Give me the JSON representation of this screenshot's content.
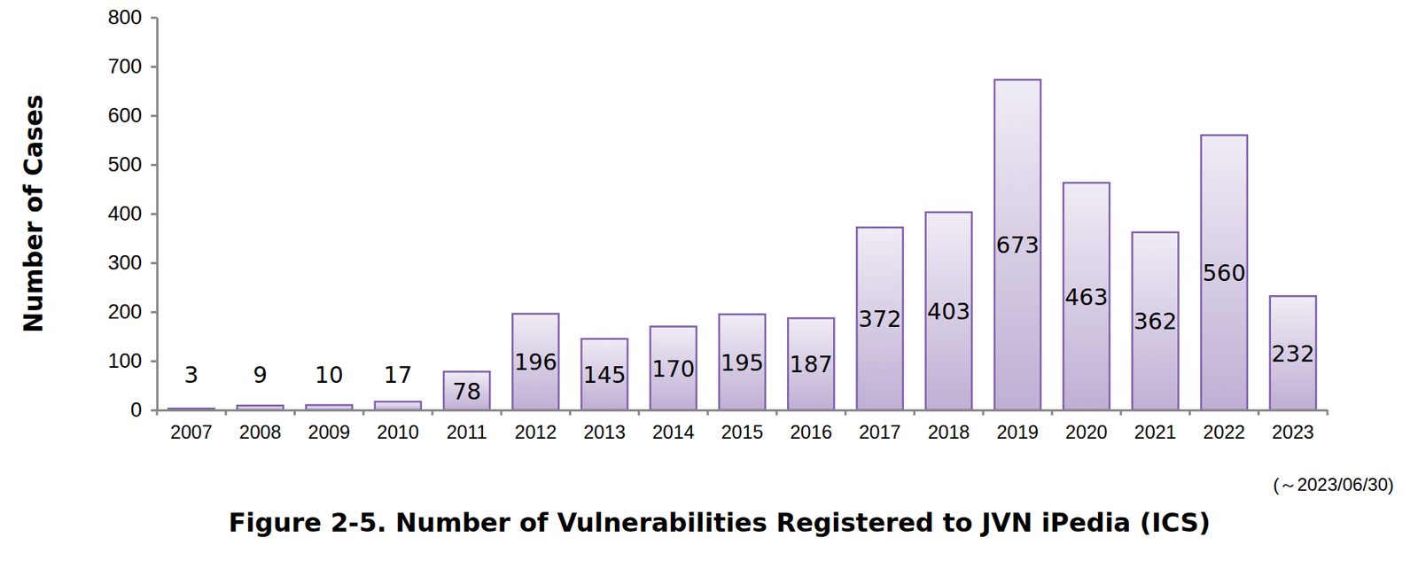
{
  "chart_data": {
    "type": "bar",
    "title": "Figure 2-5. Number of Vulnerabilities Registered to JVN iPedia (ICS)",
    "y_label": "Number of Cases",
    "annotation": "(～2023/06/30)",
    "categories": [
      "2007",
      "2008",
      "2009",
      "2010",
      "2011",
      "2012",
      "2013",
      "2014",
      "2015",
      "2016",
      "2017",
      "2018",
      "2019",
      "2020",
      "2021",
      "2022",
      "2023"
    ],
    "values": [
      3,
      9,
      10,
      17,
      78,
      196,
      145,
      170,
      195,
      187,
      372,
      403,
      673,
      463,
      362,
      560,
      232
    ],
    "color": "#7f5fa8",
    "ylim": [
      0,
      800
    ],
    "yticks": [
      0,
      100,
      200,
      300,
      400,
      500,
      600,
      700,
      800
    ],
    "data_labels": true,
    "grid": false
  }
}
